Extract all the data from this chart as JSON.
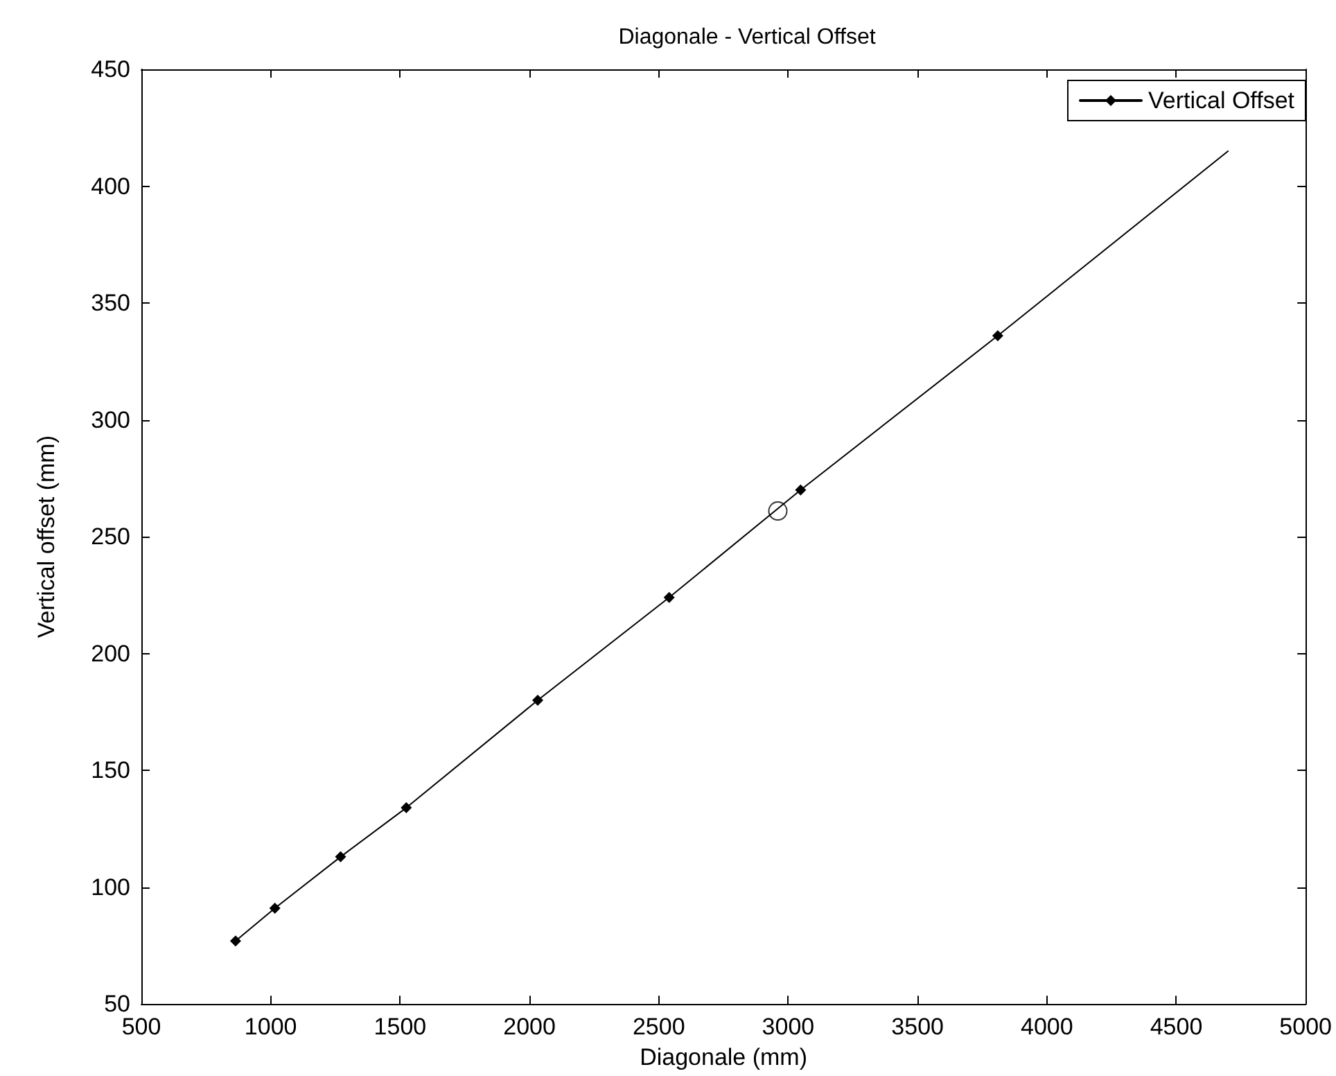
{
  "chart_data": {
    "type": "line",
    "title": "Diagonale - Vertical Offset",
    "xlabel": "Diagonale (mm)",
    "ylabel": "Vertical offset (mm)",
    "xlim": [
      500,
      5000
    ],
    "xticks": [
      500,
      1000,
      1500,
      2000,
      2500,
      3000,
      3500,
      4000,
      4500,
      5000
    ],
    "ylim": [
      50,
      450
    ],
    "yticks": [
      50,
      100,
      150,
      200,
      250,
      300,
      350,
      400,
      450
    ],
    "grid": false,
    "legend": "top right",
    "series": [
      {
        "name": "Vertical Offset",
        "type": "line",
        "color": "#000000",
        "marker": "diamond",
        "x": [
          864,
          1016,
          1270,
          1524,
          2032,
          2540,
          3048,
          3810
        ],
        "values": [
          77,
          91,
          113,
          134,
          180,
          224,
          270,
          336
        ]
      },
      {
        "type": "line",
        "color": "#000000",
        "marker": "none",
        "x": [
          3810,
          4700
        ],
        "values": [
          336,
          415
        ]
      },
      {
        "type": "scatter",
        "color": "#000000",
        "marker": "circle",
        "x": [
          2960
        ],
        "values": [
          261
        ]
      }
    ]
  }
}
